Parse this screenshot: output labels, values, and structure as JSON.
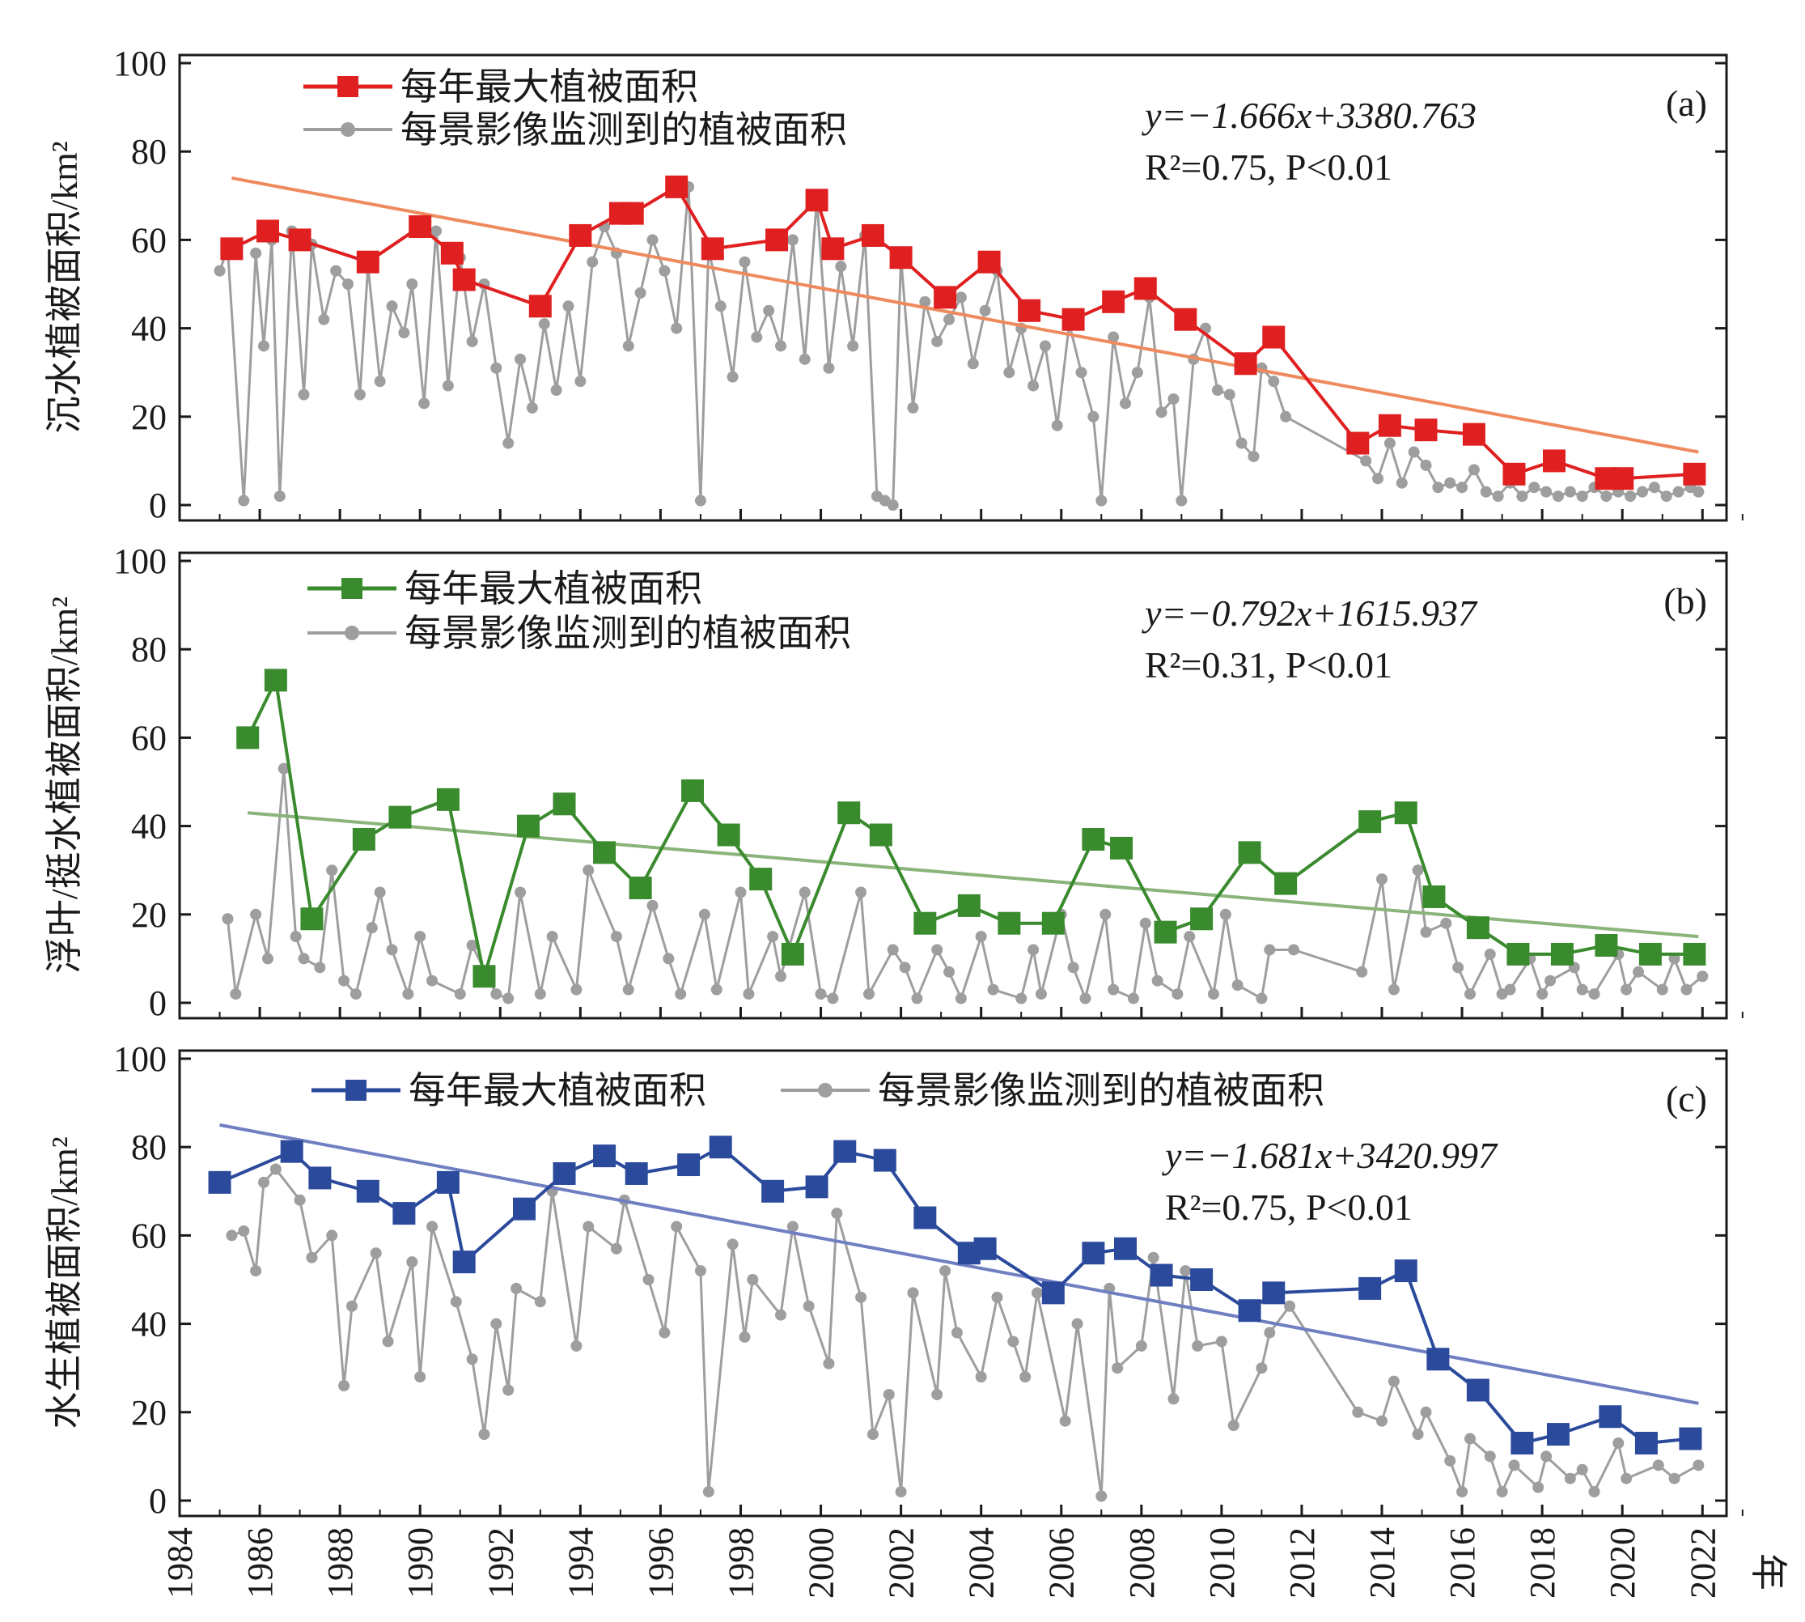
{
  "chart_data": [
    {
      "panel": "(a)",
      "type": "line",
      "ylabel": "沉水植被面积/km²",
      "ylim": [
        0,
        100
      ],
      "yticks": [
        0,
        20,
        40,
        60,
        80,
        100
      ],
      "legend": [
        "每年最大植被面积",
        "每景影像监测到的植被面积"
      ],
      "equation": "y=−1.666x+3380.763",
      "r2": "R²=0.75, P<0.01",
      "colors": {
        "annual": "#e02020",
        "scene": "#9e9e9e",
        "trend": "#ef8a5e"
      },
      "annual_x": [
        1985.3,
        1986.2,
        1987.0,
        1988.7,
        1990.0,
        1990.8,
        1991.1,
        1993.0,
        1994.0,
        1995.0,
        1995.3,
        1996.4,
        1997.3,
        1998.9,
        1999.9,
        2000.3,
        2001.3,
        2002.0,
        2003.1,
        2004.2,
        2005.2,
        2006.3,
        2007.3,
        2008.1,
        2009.1,
        2010.6,
        2011.3,
        2013.4,
        2014.2,
        2015.1,
        2016.3,
        2017.3,
        2018.3,
        2019.6,
        2020.0,
        2021.8
      ],
      "annual_y": [
        58,
        62,
        60,
        55,
        63,
        57,
        51,
        45,
        61,
        66,
        66,
        72,
        58,
        60,
        69,
        58,
        61,
        56,
        47,
        55,
        44,
        42,
        46,
        49,
        42,
        32,
        38,
        14,
        18,
        17,
        16,
        7,
        10,
        6,
        6,
        7
      ],
      "trend": {
        "x": [
          1985.3,
          2021.9
        ],
        "y": [
          74,
          12
        ]
      },
      "scene_x": [
        1985.0,
        1985.2,
        1985.6,
        1985.9,
        1986.1,
        1986.3,
        1986.5,
        1986.8,
        1987.1,
        1987.3,
        1987.6,
        1987.9,
        1988.2,
        1988.5,
        1988.7,
        1989.0,
        1989.3,
        1989.6,
        1989.8,
        1990.1,
        1990.4,
        1990.7,
        1991.0,
        1991.3,
        1991.6,
        1991.9,
        1992.2,
        1992.5,
        1992.8,
        1993.1,
        1993.4,
        1993.7,
        1994.0,
        1994.3,
        1994.6,
        1994.9,
        1995.2,
        1995.5,
        1995.8,
        1996.1,
        1996.4,
        1996.7,
        1997.0,
        1997.2,
        1997.5,
        1997.8,
        1998.1,
        1998.4,
        1998.7,
        1999.0,
        1999.3,
        1999.6,
        1999.9,
        2000.2,
        2000.5,
        2000.8,
        2001.1,
        2001.4,
        2001.6,
        2001.8,
        2002.0,
        2002.3,
        2002.6,
        2002.9,
        2003.2,
        2003.5,
        2003.8,
        2004.1,
        2004.4,
        2004.7,
        2005.0,
        2005.3,
        2005.6,
        2005.9,
        2006.2,
        2006.5,
        2006.8,
        2007.0,
        2007.3,
        2007.6,
        2007.9,
        2008.2,
        2008.5,
        2008.8,
        2009.0,
        2009.3,
        2009.6,
        2009.9,
        2010.2,
        2010.5,
        2010.8,
        2011.0,
        2011.3,
        2011.6,
        2013.6,
        2013.9,
        2014.2,
        2014.5,
        2014.8,
        2015.1,
        2015.4,
        2015.7,
        2016.0,
        2016.3,
        2016.6,
        2016.9,
        2017.2,
        2017.5,
        2017.8,
        2018.1,
        2018.4,
        2018.7,
        2019.0,
        2019.3,
        2019.6,
        2019.9,
        2020.2,
        2020.5,
        2020.8,
        2021.1,
        2021.4,
        2021.7,
        2021.9
      ],
      "scene_y": [
        53,
        58,
        1,
        57,
        36,
        60,
        2,
        62,
        25,
        59,
        42,
        53,
        50,
        25,
        54,
        28,
        45,
        39,
        50,
        23,
        62,
        27,
        56,
        37,
        50,
        31,
        14,
        33,
        22,
        41,
        26,
        45,
        28,
        55,
        63,
        57,
        36,
        48,
        60,
        53,
        40,
        72,
        1,
        58,
        45,
        29,
        55,
        38,
        44,
        36,
        60,
        33,
        69,
        31,
        54,
        36,
        61,
        2,
        1,
        0,
        56,
        22,
        46,
        37,
        42,
        47,
        32,
        44,
        53,
        30,
        40,
        27,
        36,
        18,
        41,
        30,
        20,
        1,
        38,
        23,
        30,
        47,
        21,
        24,
        1,
        33,
        40,
        26,
        25,
        14,
        11,
        31,
        28,
        20,
        10,
        6,
        14,
        5,
        12,
        9,
        4,
        5,
        4,
        8,
        3,
        2,
        5,
        2,
        4,
        3,
        2,
        3,
        2,
        4,
        2,
        3,
        2,
        3,
        4,
        2,
        3,
        4,
        3
      ],
      "xlim": [
        1984,
        2022.6
      ]
    },
    {
      "panel": "(b)",
      "type": "line",
      "ylabel": "浮叶/挺水植被面积/km²",
      "ylim": [
        0,
        100
      ],
      "yticks": [
        0,
        20,
        40,
        60,
        80,
        100
      ],
      "legend": [
        "每年最大植被面积",
        "每景影像监测到的植被面积"
      ],
      "equation": "y=−0.792x+1615.937",
      "r2": "R²=0.31, P<0.01",
      "colors": {
        "annual": "#3a8a2e",
        "scene": "#9e9e9e",
        "trend": "#8ab47a"
      },
      "annual_x": [
        1985.7,
        1986.4,
        1987.3,
        1988.6,
        1989.5,
        1990.7,
        1991.6,
        1992.7,
        1993.6,
        1994.6,
        1995.5,
        1996.8,
        1997.7,
        1998.5,
        1999.3,
        2000.7,
        2001.5,
        2002.6,
        2003.7,
        2004.7,
        2005.8,
        2006.8,
        2007.5,
        2008.6,
        2009.5,
        2010.7,
        2011.6,
        2013.7,
        2014.6,
        2015.3,
        2016.4,
        2017.4,
        2018.5,
        2019.6,
        2020.7,
        2021.8
      ],
      "annual_y": [
        60,
        73,
        19,
        37,
        42,
        46,
        6,
        40,
        45,
        34,
        26,
        48,
        38,
        28,
        11,
        43,
        38,
        18,
        22,
        18,
        18,
        37,
        35,
        16,
        19,
        34,
        27,
        41,
        43,
        24,
        17,
        11,
        11,
        13,
        11,
        11
      ],
      "trend": {
        "x": [
          1985.7,
          2021.9
        ],
        "y": [
          43,
          15
        ]
      },
      "scene_x": [
        1985.2,
        1985.4,
        1985.9,
        1986.2,
        1986.6,
        1986.9,
        1987.1,
        1987.5,
        1987.8,
        1988.1,
        1988.4,
        1988.8,
        1989.0,
        1989.3,
        1989.7,
        1990.0,
        1990.3,
        1991.0,
        1991.3,
        1991.9,
        1992.2,
        1992.5,
        1993.0,
        1993.3,
        1993.9,
        1994.2,
        1994.9,
        1995.2,
        1995.8,
        1996.2,
        1996.5,
        1997.1,
        1997.4,
        1998.0,
        1998.2,
        1998.8,
        1999.0,
        1999.6,
        2000.0,
        2000.3,
        2001.0,
        2001.2,
        2001.8,
        2002.1,
        2002.4,
        2002.9,
        2003.2,
        2003.5,
        2004.0,
        2004.3,
        2005.0,
        2005.3,
        2005.5,
        2006.0,
        2006.3,
        2006.6,
        2007.1,
        2007.3,
        2007.8,
        2008.1,
        2008.4,
        2008.9,
        2009.2,
        2009.8,
        2010.1,
        2010.4,
        2011.0,
        2011.2,
        2011.8,
        2013.5,
        2014.0,
        2014.3,
        2014.9,
        2015.1,
        2015.6,
        2015.9,
        2016.2,
        2016.7,
        2017.0,
        2017.2,
        2017.7,
        2018.0,
        2018.2,
        2018.8,
        2019.0,
        2019.3,
        2019.9,
        2020.1,
        2020.4,
        2021.0,
        2021.3,
        2021.6,
        2022.0
      ],
      "scene_y": [
        19,
        2,
        20,
        10,
        53,
        15,
        10,
        8,
        30,
        5,
        2,
        17,
        25,
        12,
        2,
        15,
        5,
        2,
        13,
        2,
        1,
        25,
        2,
        15,
        3,
        30,
        15,
        3,
        22,
        10,
        2,
        20,
        3,
        25,
        2,
        15,
        6,
        25,
        2,
        1,
        25,
        2,
        12,
        8,
        1,
        12,
        7,
        1,
        15,
        3,
        1,
        12,
        2,
        20,
        8,
        1,
        20,
        3,
        1,
        18,
        5,
        2,
        15,
        2,
        20,
        4,
        1,
        12,
        12,
        7,
        28,
        3,
        30,
        16,
        18,
        8,
        2,
        11,
        2,
        3,
        10,
        2,
        5,
        8,
        3,
        2,
        11,
        3,
        7,
        3,
        10,
        3,
        6
      ],
      "xlim": [
        1984,
        2022.6
      ]
    },
    {
      "panel": "(c)",
      "type": "line",
      "ylabel": "水生植被面积/km²",
      "ylim": [
        0,
        100
      ],
      "yticks": [
        0,
        20,
        40,
        60,
        80,
        100
      ],
      "legend": [
        "每年最大植被面积",
        "每景影像监测到的植被面积"
      ],
      "equation": "y=−1.681x+3420.997",
      "r2": "R²=0.75, P<0.01",
      "colors": {
        "annual": "#2b4a9c",
        "scene": "#9e9e9e",
        "trend": "#6f7fc2"
      },
      "annual_x": [
        1985.0,
        1986.8,
        1987.5,
        1988.7,
        1989.6,
        1990.7,
        1991.1,
        1992.6,
        1993.6,
        1994.6,
        1995.4,
        1996.7,
        1997.5,
        1998.8,
        1999.9,
        2000.6,
        2001.6,
        2002.6,
        2003.7,
        2004.1,
        2005.8,
        2006.8,
        2007.6,
        2008.5,
        2009.5,
        2010.7,
        2011.3,
        2013.7,
        2014.6,
        2015.4,
        2016.4,
        2017.5,
        2018.4,
        2019.7,
        2020.6,
        2021.7
      ],
      "annual_y": [
        72,
        79,
        73,
        70,
        65,
        72,
        54,
        66,
        74,
        78,
        74,
        76,
        80,
        70,
        71,
        79,
        77,
        64,
        56,
        57,
        47,
        56,
        57,
        51,
        50,
        43,
        47,
        48,
        52,
        32,
        25,
        13,
        15,
        19,
        13,
        14
      ],
      "trend": {
        "x": [
          1985.0,
          2021.9
        ],
        "y": [
          85,
          22
        ]
      },
      "scene_x": [
        1985.3,
        1985.6,
        1985.9,
        1986.1,
        1986.4,
        1987.0,
        1987.3,
        1987.8,
        1988.1,
        1988.3,
        1988.9,
        1989.2,
        1989.8,
        1990.0,
        1990.3,
        1990.9,
        1991.3,
        1991.6,
        1991.9,
        1992.2,
        1992.4,
        1993.0,
        1993.3,
        1993.9,
        1994.2,
        1994.9,
        1995.1,
        1995.7,
        1996.1,
        1996.4,
        1997.0,
        1997.2,
        1997.8,
        1998.1,
        1998.3,
        1999.0,
        1999.3,
        1999.7,
        2000.2,
        2000.4,
        2001.0,
        2001.3,
        2001.7,
        2002.0,
        2002.3,
        2002.9,
        2003.1,
        2003.4,
        2004.0,
        2004.4,
        2004.8,
        2005.1,
        2005.4,
        2006.1,
        2006.4,
        2007.0,
        2007.2,
        2007.4,
        2008.0,
        2008.3,
        2008.8,
        2009.1,
        2009.4,
        2010.0,
        2010.3,
        2011.0,
        2011.2,
        2011.7,
        2013.4,
        2014.0,
        2014.3,
        2014.9,
        2015.1,
        2015.7,
        2016.0,
        2016.2,
        2016.7,
        2017.0,
        2017.3,
        2017.9,
        2018.1,
        2018.7,
        2019.0,
        2019.3,
        2019.9,
        2020.1,
        2020.9,
        2021.3,
        2021.9
      ],
      "scene_y": [
        60,
        61,
        52,
        72,
        75,
        68,
        55,
        60,
        26,
        44,
        56,
        36,
        54,
        28,
        62,
        45,
        32,
        15,
        40,
        25,
        48,
        45,
        70,
        35,
        62,
        57,
        68,
        50,
        38,
        62,
        52,
        2,
        58,
        37,
        50,
        42,
        62,
        44,
        31,
        65,
        46,
        15,
        24,
        2,
        47,
        24,
        52,
        38,
        28,
        46,
        36,
        28,
        47,
        18,
        40,
        1,
        48,
        30,
        35,
        55,
        23,
        52,
        35,
        36,
        17,
        30,
        38,
        44,
        20,
        18,
        27,
        15,
        20,
        9,
        2,
        14,
        10,
        2,
        8,
        3,
        10,
        5,
        7,
        2,
        13,
        5,
        8,
        5,
        8
      ],
      "xlim": [
        1984,
        2022.6
      ]
    }
  ],
  "x_axis": {
    "ticks": [
      "1984",
      "1986",
      "1988",
      "1990",
      "1992",
      "1994",
      "1996",
      "1998",
      "2000",
      "2002",
      "2004",
      "2006",
      "2008",
      "2010",
      "2012",
      "2014",
      "2016",
      "2018",
      "2020",
      "2022"
    ],
    "label": "年"
  }
}
